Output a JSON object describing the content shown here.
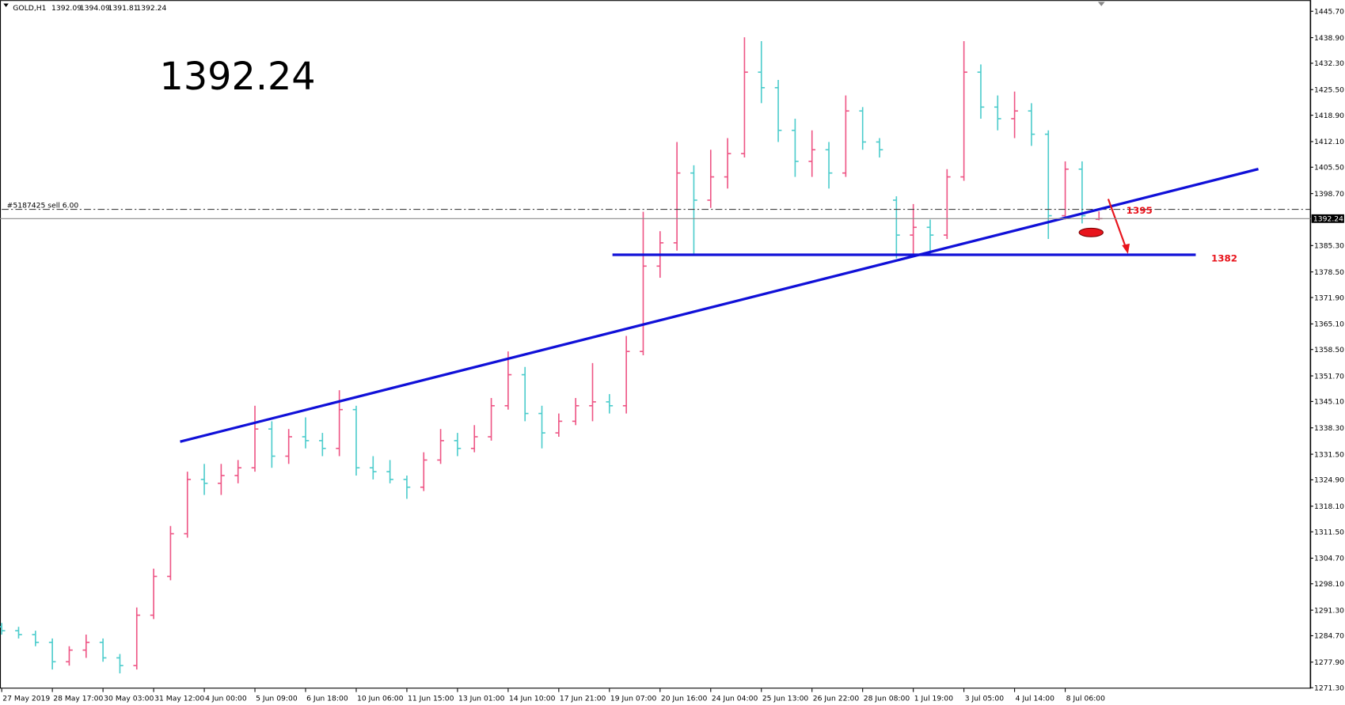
{
  "chart_data": {
    "type": "ohlc",
    "symbol": "GOLD,H1",
    "last_price": 1392.24,
    "annotations": {
      "order": "#5187425 sell 6.00",
      "target_upper": "1395",
      "target_lower": "1382"
    },
    "up_color": "#ee5585",
    "down_color": "#4ccccc",
    "categories": [
      "27 May 2019",
      null,
      null,
      "28 May 17:00",
      null,
      null,
      "30 May 03:00",
      null,
      null,
      "31 May 12:00",
      null,
      null,
      "4 Jun 00:00",
      null,
      null,
      "5 Jun 09:00",
      null,
      null,
      "6 Jun 18:00",
      null,
      null,
      "10 Jun 06:00",
      null,
      null,
      "11 Jun 15:00",
      null,
      null,
      "13 Jun 01:00",
      null,
      null,
      "14 Jun 10:00",
      null,
      null,
      "17 Jun 21:00",
      null,
      null,
      "19 Jun 07:00",
      null,
      null,
      "20 Jun 16:00",
      null,
      null,
      "24 Jun 04:00",
      null,
      null,
      "25 Jun 13:00",
      null,
      null,
      "26 Jun 22:00",
      null,
      null,
      "28 Jun 08:00",
      null,
      null,
      "1 Jul 19:00",
      null,
      null,
      "3 Jul 05:00",
      null,
      null,
      "4 Jul 14:00",
      null,
      null,
      "8 Jul 06:00",
      null,
      null
    ],
    "open": [
      1287,
      1286,
      1285,
      1283,
      1278,
      1281,
      1283,
      1279,
      1277,
      1290,
      1300,
      1311,
      1325,
      1324,
      1326,
      1328,
      1338,
      1331,
      1336,
      1335,
      1333,
      1343,
      1328,
      1327,
      1325,
      1323,
      1330,
      1335,
      1333,
      1336,
      1344,
      1352,
      1342,
      1337,
      1340,
      1344,
      1345,
      1344,
      1358,
      1380,
      1386,
      1404,
      1397,
      1403,
      1409,
      1430,
      1426,
      1415,
      1407,
      1410,
      1404,
      1420,
      1412,
      1397,
      1388,
      1390,
      1388,
      1403,
      1430,
      1421,
      1418,
      1420,
      1414,
      1393,
      1405,
      1392.09
    ],
    "high": [
      1288,
      1287,
      1286,
      1284,
      1282,
      1285,
      1284,
      1280,
      1292,
      1302,
      1313,
      1327,
      1329,
      1329,
      1330,
      1344,
      1340,
      1338,
      1341,
      1337,
      1348,
      1344,
      1331,
      1330,
      1326,
      1332,
      1338,
      1337,
      1339,
      1346,
      1358,
      1354,
      1344,
      1342,
      1346,
      1355,
      1347,
      1362,
      1394,
      1389,
      1412,
      1406,
      1410,
      1413,
      1439,
      1438,
      1428,
      1418,
      1415,
      1412,
      1424,
      1421,
      1413,
      1398,
      1396,
      1392,
      1405,
      1438,
      1432,
      1424,
      1425,
      1422,
      1415,
      1407,
      1407,
      1394.09
    ],
    "low": [
      1285,
      1284,
      1282,
      1276,
      1277,
      1279,
      1278,
      1275,
      1276,
      1289,
      1299,
      1310,
      1321,
      1321,
      1324,
      1327,
      1328,
      1329,
      1333,
      1331,
      1331,
      1326,
      1325,
      1324,
      1320,
      1322,
      1329,
      1331,
      1332,
      1335,
      1343,
      1340,
      1333,
      1336,
      1339,
      1340,
      1342,
      1342,
      1357,
      1377,
      1384,
      1383,
      1395,
      1400,
      1408,
      1422,
      1412,
      1403,
      1403,
      1400,
      1403,
      1410,
      1408,
      1382,
      1383,
      1383,
      1387,
      1402,
      1418,
      1415,
      1413,
      1411,
      1387,
      1392,
      1391,
      1391.81
    ],
    "close": [
      1286,
      1285,
      1283,
      1278,
      1281,
      1283,
      1279,
      1277,
      1290,
      1300,
      1311,
      1325,
      1324,
      1326,
      1328,
      1338,
      1331,
      1336,
      1335,
      1333,
      1343,
      1328,
      1327,
      1325,
      1323,
      1330,
      1335,
      1333,
      1336,
      1344,
      1352,
      1342,
      1337,
      1340,
      1344,
      1345,
      1344,
      1358,
      1380,
      1386,
      1404,
      1397,
      1403,
      1409,
      1430,
      1426,
      1415,
      1407,
      1410,
      1404,
      1420,
      1412,
      1410,
      1388,
      1390,
      1388,
      1403,
      1430,
      1421,
      1418,
      1420,
      1414,
      1393,
      1405,
      1393,
      1392.24
    ],
    "ylim": [
      1271.3,
      1445.7
    ],
    "yticks": [
      {
        "value": 1445.7,
        "label": "1445.70"
      },
      {
        "value": 1438.9,
        "label": "1438.90"
      },
      {
        "value": 1432.3,
        "label": "1432.30"
      },
      {
        "value": 1425.5,
        "label": "1425.50"
      },
      {
        "value": 1418.9,
        "label": "1418.90"
      },
      {
        "value": 1412.1,
        "label": "1412.10"
      },
      {
        "value": 1405.5,
        "label": "1405.50"
      },
      {
        "value": 1398.7,
        "label": "1398.70"
      },
      {
        "value": 1385.3,
        "label": "1385.30"
      },
      {
        "value": 1378.5,
        "label": "1378.50"
      },
      {
        "value": 1371.9,
        "label": "1371.90"
      },
      {
        "value": 1365.1,
        "label": "1365.10"
      },
      {
        "value": 1358.5,
        "label": "1358.50"
      },
      {
        "value": 1351.7,
        "label": "1351.70"
      },
      {
        "value": 1345.1,
        "label": "1345.10"
      },
      {
        "value": 1338.3,
        "label": "1338.30"
      },
      {
        "value": 1331.5,
        "label": "1331.50"
      },
      {
        "value": 1324.9,
        "label": "1324.90"
      },
      {
        "value": 1318.1,
        "label": "1318.10"
      },
      {
        "value": 1311.5,
        "label": "1311.50"
      },
      {
        "value": 1304.7,
        "label": "1304.70"
      },
      {
        "value": 1298.1,
        "label": "1298.10"
      },
      {
        "value": 1291.3,
        "label": "1291.30"
      },
      {
        "value": 1284.7,
        "label": "1284.70"
      },
      {
        "value": 1277.9,
        "label": "1277.90"
      },
      {
        "value": 1271.3,
        "label": "1271.30"
      }
    ]
  }
}
